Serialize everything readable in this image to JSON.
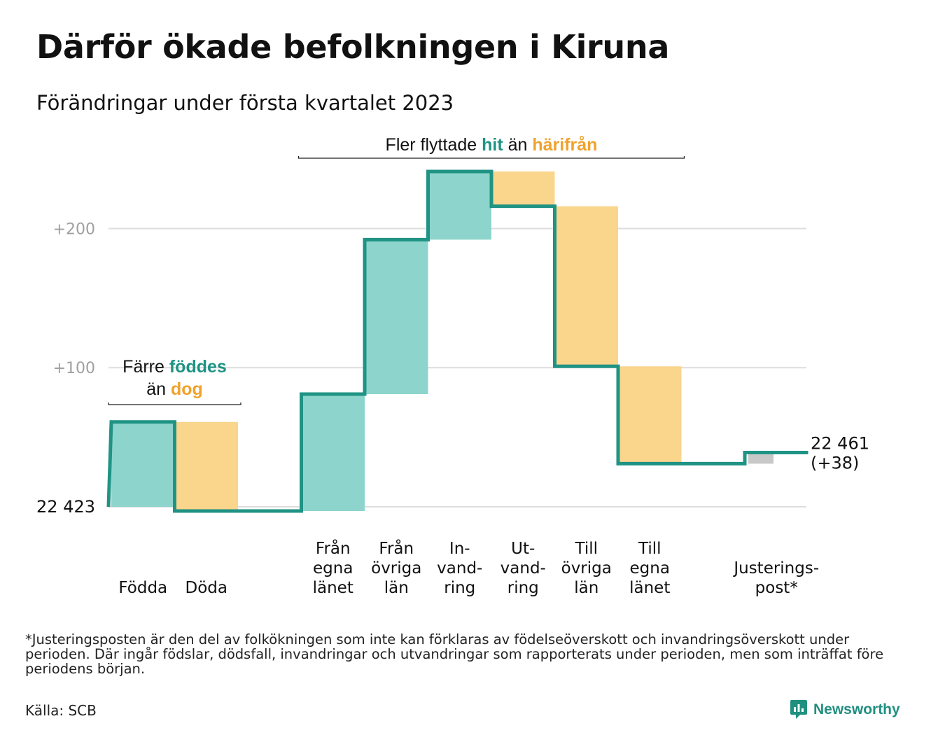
{
  "title": "Därför ökade befolkningen i Kiruna",
  "subtitle": "Förändringar under första kvartalet 2023",
  "chart_data": {
    "type": "waterfall",
    "start_value": 22423,
    "start_label": "22 423",
    "end_value": 22461,
    "end_label": "22 461",
    "end_change_label": "(+38)",
    "y_ticks": [
      {
        "value": 0,
        "label": ""
      },
      {
        "value": 100,
        "label": "+100"
      },
      {
        "value": 200,
        "label": "+200"
      }
    ],
    "ylim": [
      -3,
      245
    ],
    "grid": true,
    "steps": [
      {
        "label_lines": [
          "Födda"
        ],
        "value": 61,
        "kind": "in"
      },
      {
        "label_lines": [
          "Döda"
        ],
        "value": -64,
        "kind": "out"
      },
      {
        "label_lines": [
          ""
        ],
        "value": 0,
        "kind": "gap"
      },
      {
        "label_lines": [
          "Från",
          "egna",
          "länet"
        ],
        "value": 84,
        "kind": "in"
      },
      {
        "label_lines": [
          "Från",
          "övriga",
          "län"
        ],
        "value": 111,
        "kind": "in"
      },
      {
        "label_lines": [
          "In-",
          "vand-",
          "ring"
        ],
        "value": 49,
        "kind": "in"
      },
      {
        "label_lines": [
          "Ut-",
          "vand-",
          "ring"
        ],
        "value": -25,
        "kind": "out"
      },
      {
        "label_lines": [
          "Till",
          "övriga",
          "län"
        ],
        "value": -115,
        "kind": "out"
      },
      {
        "label_lines": [
          "Till",
          "egna",
          "länet"
        ],
        "value": -70,
        "kind": "out"
      },
      {
        "label_lines": [
          ""
        ],
        "value": 0,
        "kind": "gap"
      },
      {
        "label_lines": [
          "Justerings-",
          "post*"
        ],
        "value": 8,
        "kind": "adjust"
      }
    ],
    "annotations": [
      {
        "lines": [
          [
            {
              "text": "Färre ",
              "tone": "plain"
            },
            {
              "text": "föddes",
              "tone": "in"
            }
          ],
          [
            {
              "text": "än ",
              "tone": "plain"
            },
            {
              "text": "dog",
              "tone": "out"
            }
          ]
        ],
        "span": [
          0,
          1
        ]
      },
      {
        "lines": [
          [
            {
              "text": "Fler flyttade ",
              "tone": "plain"
            },
            {
              "text": "hit",
              "tone": "in"
            },
            {
              "text": " än ",
              "tone": "plain"
            },
            {
              "text": "härifrån",
              "tone": "out"
            }
          ]
        ],
        "span": [
          3,
          8
        ]
      }
    ],
    "colors": {
      "in_fill": "#8dd5cc",
      "out_fill": "#fad58c",
      "adjust_fill": "#c8c8c8",
      "line": "#1f9384",
      "in_text": "#1f9384",
      "out_text": "#f0a22c",
      "grid": "#dddddd",
      "tick_text": "#a0a0a0"
    }
  },
  "footnote": "*Justeringsposten är den del av folkökningen som inte kan förklaras av födelseöverskott och invandringsöverskott under perioden. Där ingår födslar, dödsfall, invandringar och utvandringar som rapporterats under perioden, men som inträffat före periodens början.",
  "source": "Källa: SCB",
  "brand": {
    "name": "Newsworthy",
    "icon": "newsworthy-logo-icon"
  }
}
